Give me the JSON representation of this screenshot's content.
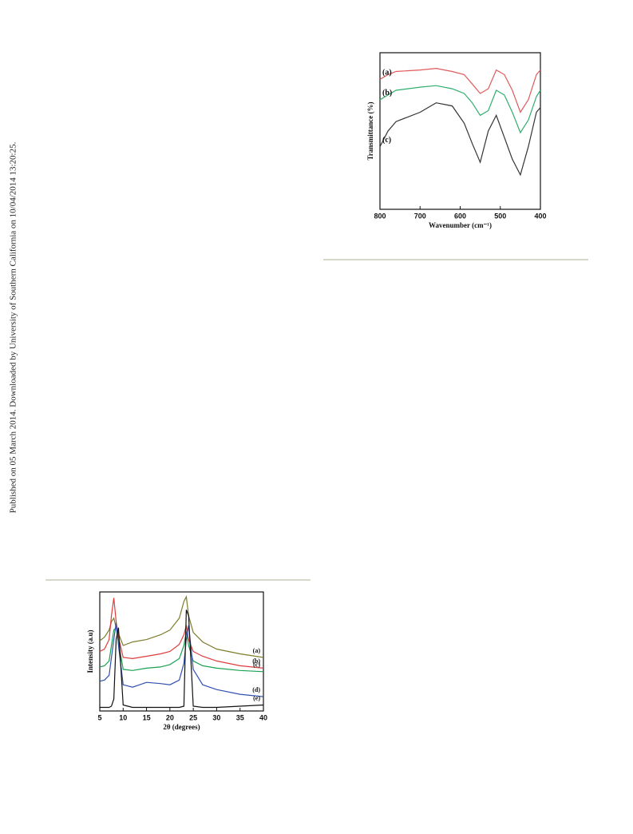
{
  "sidebar": "Published on 05 March 2014. Downloaded by University of Southern California on 10/04/2014 13:20:25.",
  "chart_data": [
    {
      "type": "line",
      "xlabel": "Wavenumber (cm⁻¹)",
      "ylabel": "Transmittance (%)",
      "x": [
        800,
        780,
        760,
        700,
        660,
        620,
        590,
        570,
        550,
        530,
        510,
        490,
        470,
        450,
        430,
        410,
        400
      ],
      "xlim": [
        800,
        400
      ],
      "xticks": [
        800,
        700,
        600,
        500,
        400
      ],
      "ylim": [
        0,
        100
      ],
      "series": [
        {
          "name": "(a)",
          "color": "#e05a5a",
          "values": [
            83,
            86,
            88,
            89,
            90,
            88,
            86,
            80,
            74,
            77,
            89,
            86,
            76,
            62,
            70,
            86,
            89
          ]
        },
        {
          "name": "(b)",
          "color": "#2fae6c",
          "values": [
            70,
            73,
            76,
            78,
            79,
            77,
            74,
            68,
            60,
            63,
            76,
            73,
            62,
            49,
            57,
            72,
            76
          ]
        },
        {
          "name": "(c)",
          "color": "#333333",
          "values": [
            40,
            50,
            56,
            62,
            68,
            66,
            55,
            42,
            30,
            50,
            60,
            46,
            32,
            22,
            40,
            62,
            65
          ]
        }
      ]
    },
    {
      "type": "line",
      "xlabel": "2θ (degrees)",
      "ylabel": "Intensity (a.u)",
      "x": [
        5,
        6,
        7,
        7.5,
        8,
        8.5,
        9,
        10,
        12,
        15,
        18,
        20,
        22,
        23,
        23.5,
        24,
        25,
        27,
        30,
        35,
        40
      ],
      "xlim": [
        5,
        40
      ],
      "xticks": [
        5,
        10,
        15,
        20,
        25,
        30,
        35,
        40
      ],
      "ylim": [
        0,
        100
      ],
      "series": [
        {
          "name": "(a)",
          "color": "#7d7d2c",
          "values": [
            59,
            62,
            68,
            75,
            78,
            70,
            65,
            55,
            58,
            60,
            64,
            68,
            78,
            92,
            96,
            80,
            66,
            58,
            52,
            48,
            45
          ]
        },
        {
          "name": "(b)",
          "color": "#e03c3c",
          "values": [
            50,
            52,
            60,
            80,
            95,
            75,
            62,
            45,
            44,
            46,
            48,
            50,
            56,
            64,
            72,
            60,
            50,
            46,
            42,
            38,
            36
          ]
        },
        {
          "name": "(c)",
          "color": "#1aa050",
          "values": [
            37,
            38,
            42,
            55,
            68,
            70,
            58,
            35,
            34,
            36,
            37,
            39,
            44,
            55,
            67,
            55,
            42,
            38,
            36,
            34,
            33
          ]
        },
        {
          "name": "(d)",
          "color": "#3050b0",
          "values": [
            25,
            26,
            30,
            45,
            60,
            74,
            55,
            22,
            20,
            24,
            23,
            22,
            26,
            40,
            60,
            72,
            35,
            22,
            18,
            14,
            12
          ]
        },
        {
          "name": "(e)",
          "color": "#111111",
          "values": [
            3,
            3,
            3,
            4,
            10,
            60,
            70,
            5,
            3,
            3,
            3,
            3,
            3,
            4,
            85,
            80,
            4,
            3,
            3,
            4,
            5
          ]
        }
      ]
    }
  ]
}
